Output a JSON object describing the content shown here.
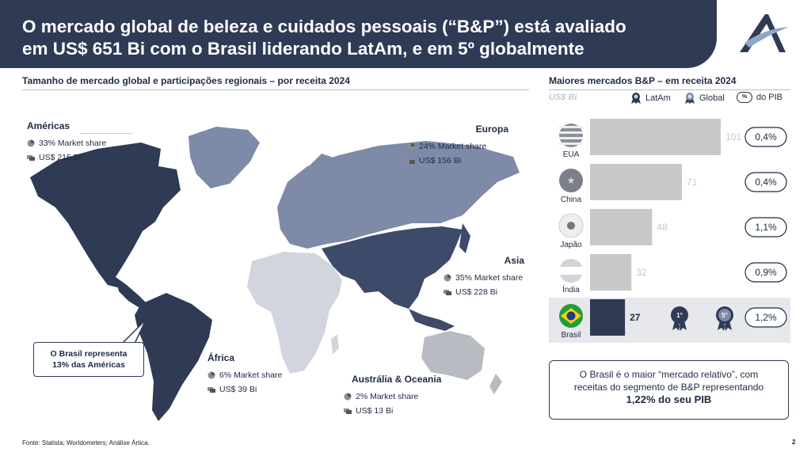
{
  "header": {
    "title_line1": "O mercado global de beleza e cuidados pessoais (“B&P”) está avaliado",
    "title_line2": "em US$ 651 Bi com o Brasil liderando LatAm, e em 5º globalmente"
  },
  "left_section": {
    "title": "Tamanho de mercado global e participações regionais – por receita 2024"
  },
  "right_section": {
    "title": "Maiores mercados B&P – em receita 2024",
    "unit": "US$ Bi",
    "legend": {
      "latam": "LatAm",
      "global": "Global",
      "pib_badge": "%",
      "pib": "do PIB"
    }
  },
  "regions": {
    "americas": {
      "name": "Américas",
      "share": "33% Market share",
      "value": "US$ 215 Bi"
    },
    "europa": {
      "name": "Europa",
      "share": "24% Market share",
      "value": "US$ 156 Bi"
    },
    "asia": {
      "name": "Asia",
      "share": "35% Market share",
      "value": "US$ 228 Bi"
    },
    "africa": {
      "name": "África",
      "share": "6% Market share",
      "value": "US$ 39 Bi"
    },
    "oceania": {
      "name": "Austrália & Oceania",
      "share": "2% Market share",
      "value": "US$ 13 Bi"
    }
  },
  "callout": {
    "line1": "O Brasil representa",
    "line2": "13% das Américas"
  },
  "chart_data": {
    "type": "bar",
    "orientation": "horizontal",
    "title": "Maiores mercados B&P – em receita 2024",
    "unit": "US$ Bi",
    "categories": [
      "EUA",
      "China",
      "Japão",
      "Índia",
      "Brasil"
    ],
    "values": [
      101,
      71,
      48,
      32,
      27
    ],
    "gdp_share": [
      "0,4%",
      "0,4%",
      "1,1%",
      "0,9%",
      "1,2%"
    ],
    "highlight": "Brasil",
    "ranks": {
      "latam": "1°",
      "global": "5°"
    },
    "colors": {
      "bar": "#c8c8c8",
      "highlight_bar": "#2f3a55",
      "label": "#c4c8cf"
    }
  },
  "note": {
    "line1": "O Brasil é o maior “mercado relativo”, com",
    "line2": "receitas do segmento de B&P representando",
    "line3": "1,22% do seu PIB"
  },
  "footer": {
    "source": "Fonte: Statista; Worldometers; Análise Ártica.",
    "page": "2"
  },
  "colors": {
    "navy": "#2f3a55",
    "americas": "#2f3a55",
    "asia": "#3e4a6a",
    "europe": "#7d8aa8",
    "africa": "#d2d5dd",
    "oceania": "#b8bbc1"
  }
}
